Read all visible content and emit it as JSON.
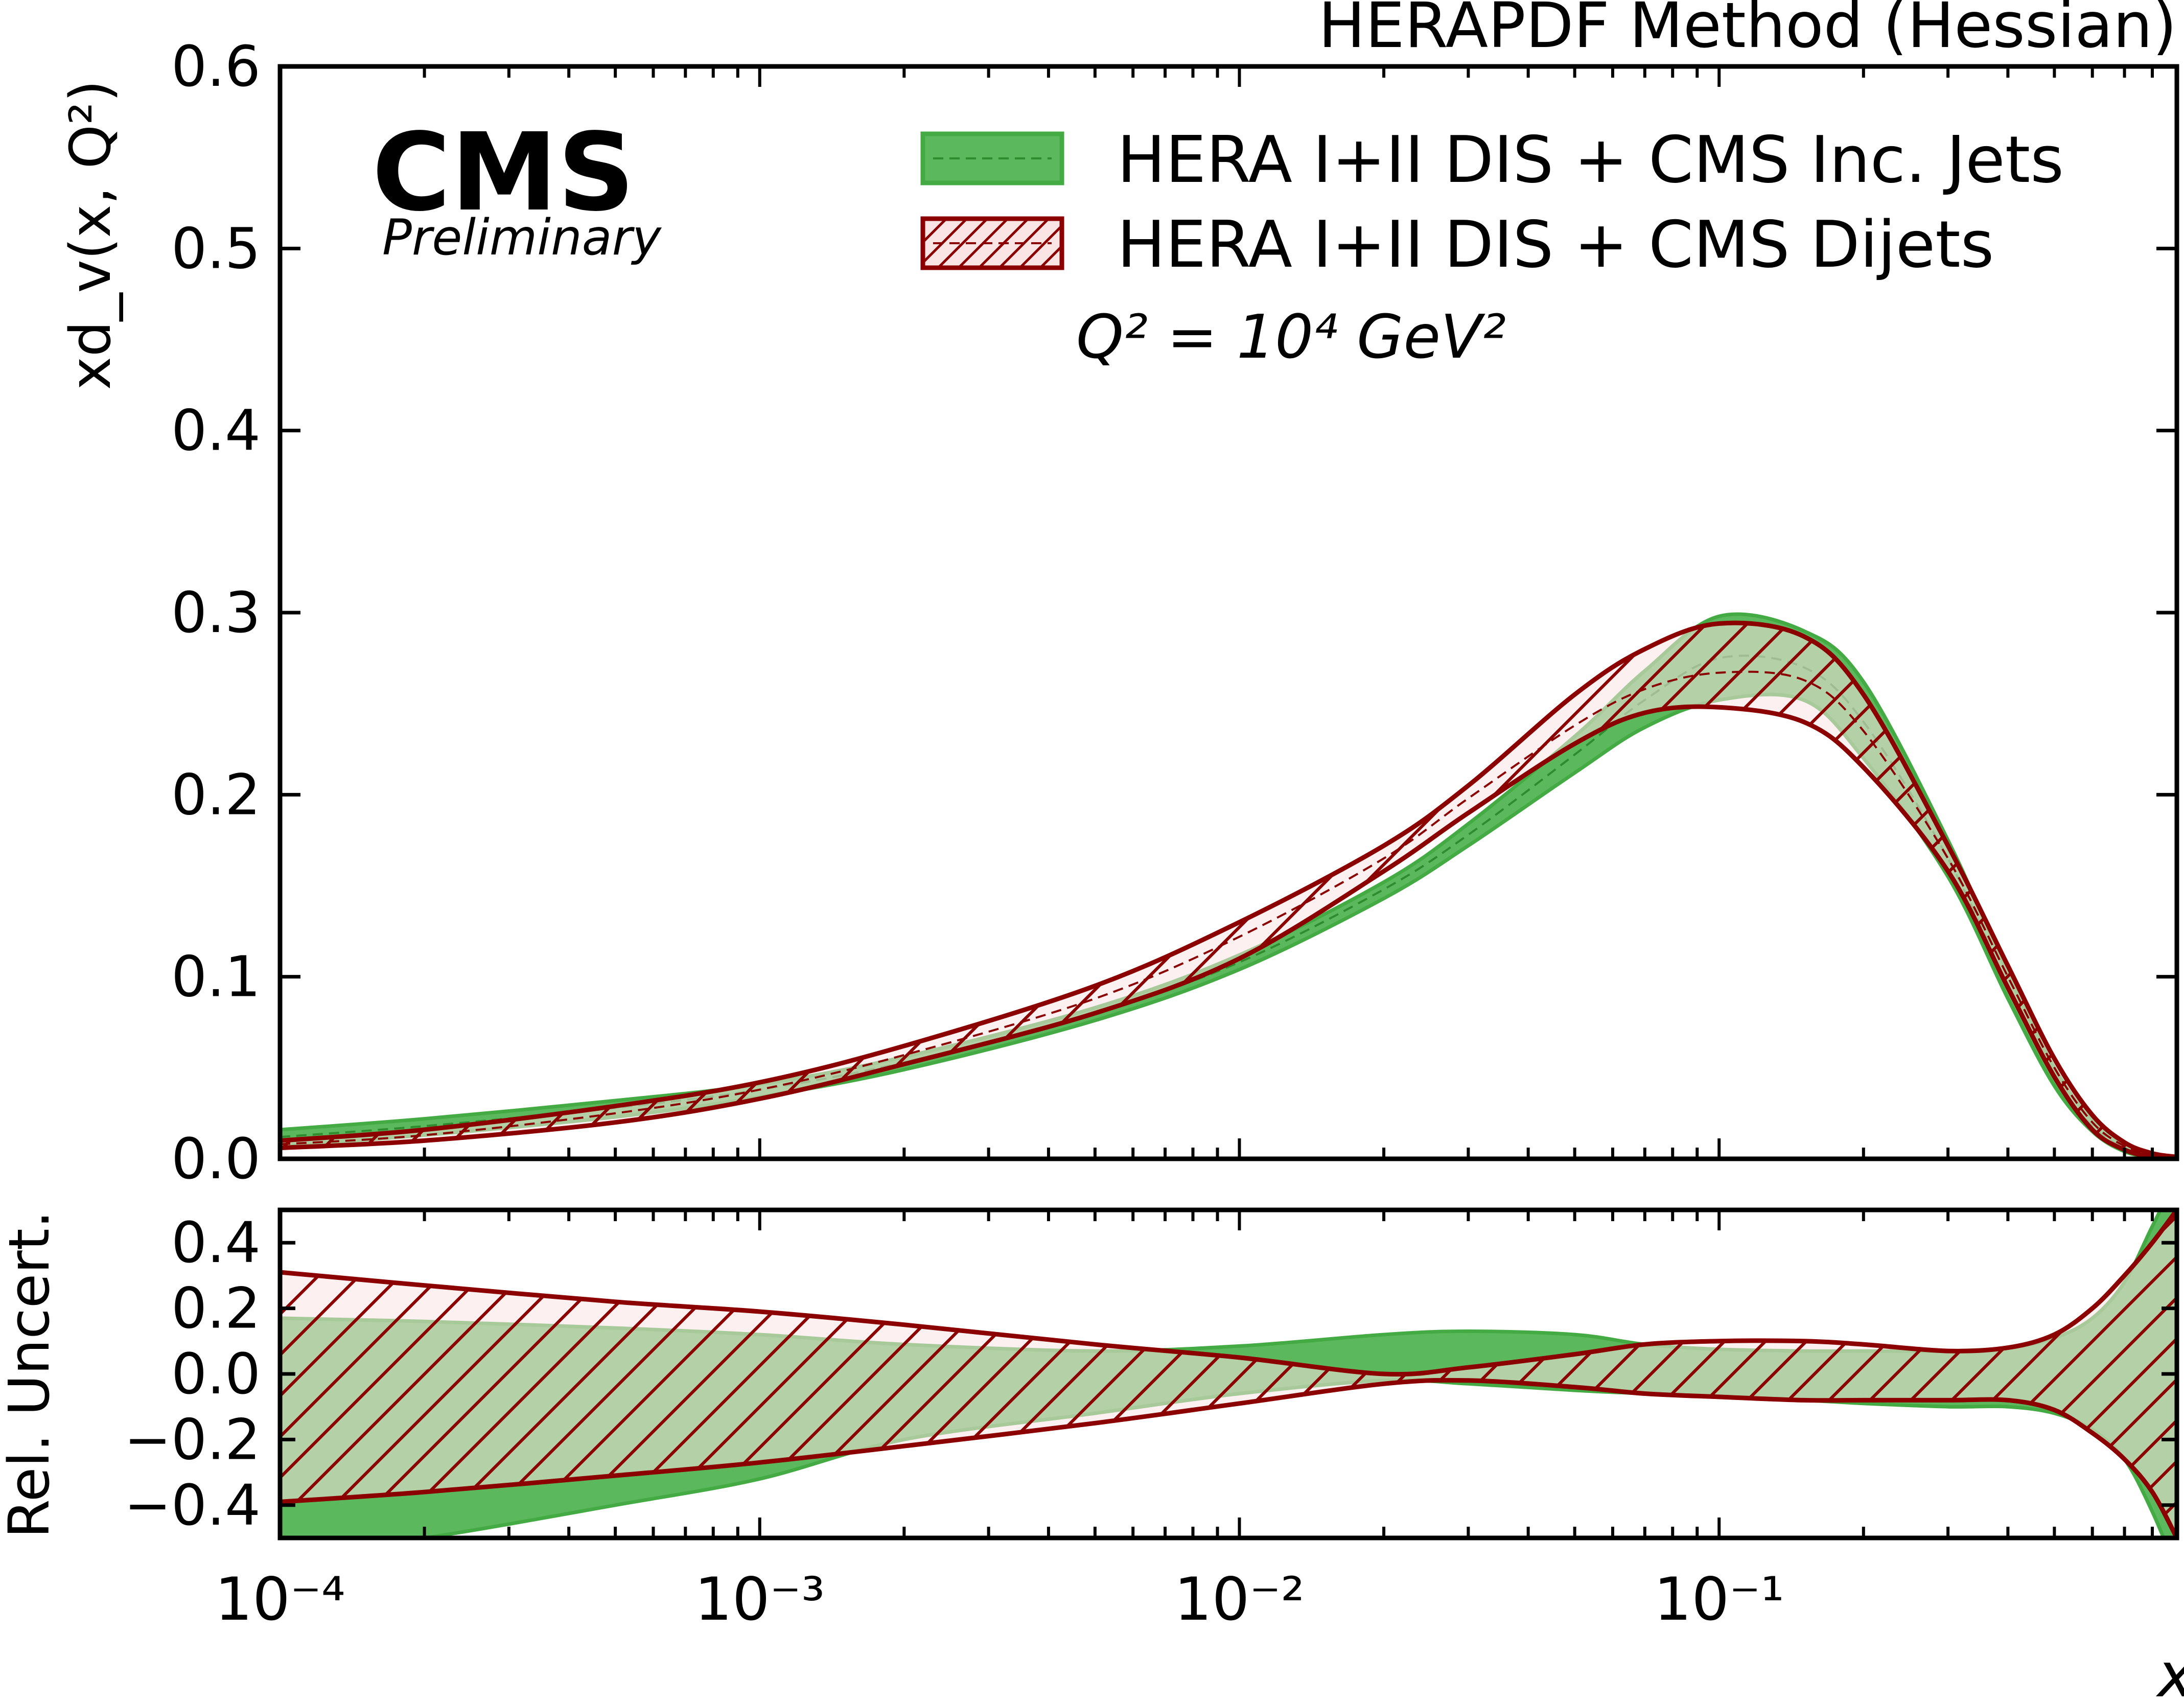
{
  "header_title": "HERAPDF Method (Hessian)",
  "experiment": "CMS",
  "status": "Preliminary",
  "annotation": "Q² = 10⁴ GeV²",
  "colors": {
    "inc_jets_fill": "#5cb85c",
    "inc_jets_edge": "#44aa44",
    "dijets_edge": "#8b0000",
    "dijets_fill": "#fbe4e4"
  },
  "chart_data": [
    {
      "type": "area",
      "panel": "top",
      "ylabel": "xd_v(x, Q²)",
      "xscale": "log",
      "xlim": [
        0.0001,
        0.9
      ],
      "ylim": [
        0,
        0.6
      ],
      "yticks": [
        "0.0",
        "0.1",
        "0.2",
        "0.3",
        "0.4",
        "0.5",
        "0.6"
      ],
      "legend_position": "top-right",
      "x": [
        0.0001,
        0.0002,
        0.0005,
        0.001,
        0.002,
        0.005,
        0.01,
        0.02,
        0.03,
        0.05,
        0.07,
        0.1,
        0.15,
        0.2,
        0.3,
        0.4,
        0.5,
        0.6,
        0.7,
        0.8,
        0.9
      ],
      "series": [
        {
          "name": "HERA I+II DIS + CMS Inc. Jets",
          "central": [
            0.012,
            0.018,
            0.028,
            0.038,
            0.053,
            0.08,
            0.108,
            0.148,
            0.178,
            0.222,
            0.252,
            0.275,
            0.27,
            0.24,
            0.165,
            0.095,
            0.045,
            0.018,
            0.006,
            0.002,
            0.0005
          ],
          "upper": [
            0.016,
            0.022,
            0.032,
            0.041,
            0.056,
            0.083,
            0.112,
            0.152,
            0.184,
            0.232,
            0.268,
            0.298,
            0.29,
            0.262,
            0.175,
            0.102,
            0.05,
            0.021,
            0.008,
            0.003,
            0.001
          ],
          "lower": [
            0.007,
            0.013,
            0.023,
            0.034,
            0.049,
            0.076,
            0.104,
            0.143,
            0.172,
            0.212,
            0.237,
            0.252,
            0.252,
            0.22,
            0.155,
            0.088,
            0.04,
            0.015,
            0.004,
            0.001,
            0.0
          ]
        },
        {
          "name": "HERA I+II DIS + CMS Dijets",
          "central": [
            0.008,
            0.013,
            0.025,
            0.038,
            0.057,
            0.088,
            0.122,
            0.165,
            0.198,
            0.238,
            0.258,
            0.267,
            0.263,
            0.235,
            0.165,
            0.1,
            0.05,
            0.02,
            0.007,
            0.002,
            0.0005
          ],
          "upper": [
            0.01,
            0.016,
            0.029,
            0.042,
            0.062,
            0.095,
            0.13,
            0.172,
            0.205,
            0.255,
            0.28,
            0.294,
            0.287,
            0.255,
            0.172,
            0.106,
            0.055,
            0.024,
            0.009,
            0.003,
            0.001
          ],
          "lower": [
            0.006,
            0.01,
            0.02,
            0.033,
            0.052,
            0.08,
            0.11,
            0.158,
            0.19,
            0.228,
            0.245,
            0.248,
            0.24,
            0.215,
            0.158,
            0.094,
            0.045,
            0.016,
            0.005,
            0.001,
            0.0
          ]
        }
      ]
    },
    {
      "type": "area",
      "panel": "bottom",
      "xlabel": "x",
      "ylabel": "Rel. Uncert.",
      "xscale": "log",
      "xlim": [
        0.0001,
        0.9
      ],
      "ylim": [
        -0.5,
        0.5
      ],
      "xticks": [
        "10⁻⁴",
        "10⁻³",
        "10⁻²",
        "10⁻¹"
      ],
      "yticks": [
        "−0.4",
        "−0.2",
        "0.0",
        "0.2",
        "0.4"
      ],
      "x": [
        0.0001,
        0.0002,
        0.0005,
        0.001,
        0.002,
        0.005,
        0.01,
        0.02,
        0.03,
        0.05,
        0.07,
        0.1,
        0.15,
        0.2,
        0.3,
        0.4,
        0.5,
        0.6,
        0.7,
        0.8,
        0.9
      ],
      "series": [
        {
          "name": "HERA I+II DIS + CMS Inc. Jets",
          "upper": [
            0.17,
            0.16,
            0.14,
            0.12,
            0.09,
            0.07,
            0.085,
            0.12,
            0.13,
            0.12,
            0.09,
            0.075,
            0.07,
            0.07,
            0.07,
            0.08,
            0.11,
            0.17,
            0.28,
            0.45,
            0.6
          ],
          "lower": [
            -0.55,
            -0.5,
            -0.4,
            -0.32,
            -0.2,
            -0.12,
            -0.06,
            -0.02,
            -0.03,
            -0.05,
            -0.06,
            -0.07,
            -0.08,
            -0.09,
            -0.1,
            -0.1,
            -0.12,
            -0.17,
            -0.26,
            -0.42,
            -0.6
          ]
        },
        {
          "name": "HERA I+II DIS + CMS Dijets",
          "upper": [
            0.31,
            0.27,
            0.22,
            0.19,
            0.15,
            0.09,
            0.05,
            0.0,
            0.02,
            0.06,
            0.09,
            0.1,
            0.1,
            0.09,
            0.07,
            0.08,
            0.12,
            0.2,
            0.3,
            0.4,
            0.5
          ],
          "lower": [
            -0.39,
            -0.36,
            -0.31,
            -0.27,
            -0.22,
            -0.15,
            -0.09,
            -0.03,
            -0.02,
            -0.04,
            -0.06,
            -0.07,
            -0.08,
            -0.08,
            -0.08,
            -0.08,
            -0.11,
            -0.18,
            -0.26,
            -0.36,
            -0.5
          ]
        }
      ]
    }
  ]
}
